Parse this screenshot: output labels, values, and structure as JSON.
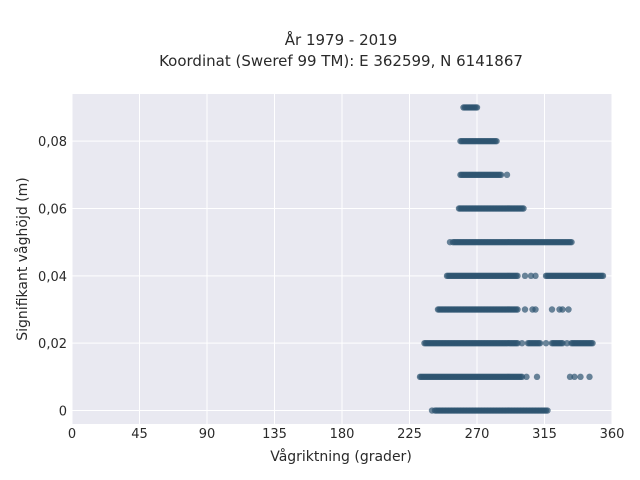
{
  "chart_data": {
    "type": "scatter",
    "title": "År 1979 - 2019",
    "subtitle": "Koordinat (Sweref 99 TM): E 362599, N 6141867",
    "xlabel": "Vågriktning (grader)",
    "ylabel": "Signifikant våghöjd (m)",
    "xlim": [
      0,
      360
    ],
    "ylim": [
      -0.004,
      0.094
    ],
    "x_ticks": [
      0,
      45,
      90,
      135,
      180,
      225,
      270,
      315,
      360
    ],
    "x_tick_labels": [
      "0",
      "45",
      "90",
      "135",
      "180",
      "225",
      "270",
      "315",
      "360"
    ],
    "y_ticks": [
      0,
      0.02,
      0.04,
      0.06,
      0.08
    ],
    "y_tick_labels": [
      "0",
      "0,02",
      "0,04",
      "0,06",
      "0,08"
    ],
    "grid": true,
    "marker_color": "#2e5470",
    "background_color": "#e9e9f1",
    "series": [
      {
        "points_dense": [
          {
            "y": 0.0,
            "x_from": 242,
            "x_to": 316
          },
          {
            "y": 0.01,
            "x_from": 232,
            "x_to": 300
          },
          {
            "y": 0.02,
            "x_from": 235,
            "x_to": 297
          },
          {
            "y": 0.02,
            "x_from": 304,
            "x_to": 312
          },
          {
            "y": 0.02,
            "x_from": 320,
            "x_to": 327
          },
          {
            "y": 0.02,
            "x_from": 333,
            "x_to": 347
          },
          {
            "y": 0.03,
            "x_from": 244,
            "x_to": 297
          },
          {
            "y": 0.04,
            "x_from": 250,
            "x_to": 297
          },
          {
            "y": 0.04,
            "x_from": 316,
            "x_to": 354
          },
          {
            "y": 0.05,
            "x_from": 254,
            "x_to": 333
          },
          {
            "y": 0.06,
            "x_from": 258,
            "x_to": 301
          },
          {
            "y": 0.07,
            "x_from": 259,
            "x_to": 286
          },
          {
            "y": 0.08,
            "x_from": 259,
            "x_to": 283
          },
          {
            "y": 0.09,
            "x_from": 261,
            "x_to": 270
          }
        ],
        "points_sparse": [
          {
            "x": 240,
            "y": 0.0
          },
          {
            "x": 317,
            "y": 0.0
          },
          {
            "x": 303,
            "y": 0.01
          },
          {
            "x": 310,
            "y": 0.01
          },
          {
            "x": 332,
            "y": 0.01
          },
          {
            "x": 335,
            "y": 0.01
          },
          {
            "x": 339,
            "y": 0.01
          },
          {
            "x": 345,
            "y": 0.01
          },
          {
            "x": 300,
            "y": 0.02
          },
          {
            "x": 316,
            "y": 0.02
          },
          {
            "x": 330,
            "y": 0.02
          },
          {
            "x": 302,
            "y": 0.03
          },
          {
            "x": 307,
            "y": 0.03
          },
          {
            "x": 309,
            "y": 0.03
          },
          {
            "x": 320,
            "y": 0.03
          },
          {
            "x": 325,
            "y": 0.03
          },
          {
            "x": 327,
            "y": 0.03
          },
          {
            "x": 331,
            "y": 0.03
          },
          {
            "x": 302,
            "y": 0.04
          },
          {
            "x": 306,
            "y": 0.04
          },
          {
            "x": 309,
            "y": 0.04
          },
          {
            "x": 252,
            "y": 0.05
          },
          {
            "x": 290,
            "y": 0.07
          }
        ]
      }
    ]
  }
}
